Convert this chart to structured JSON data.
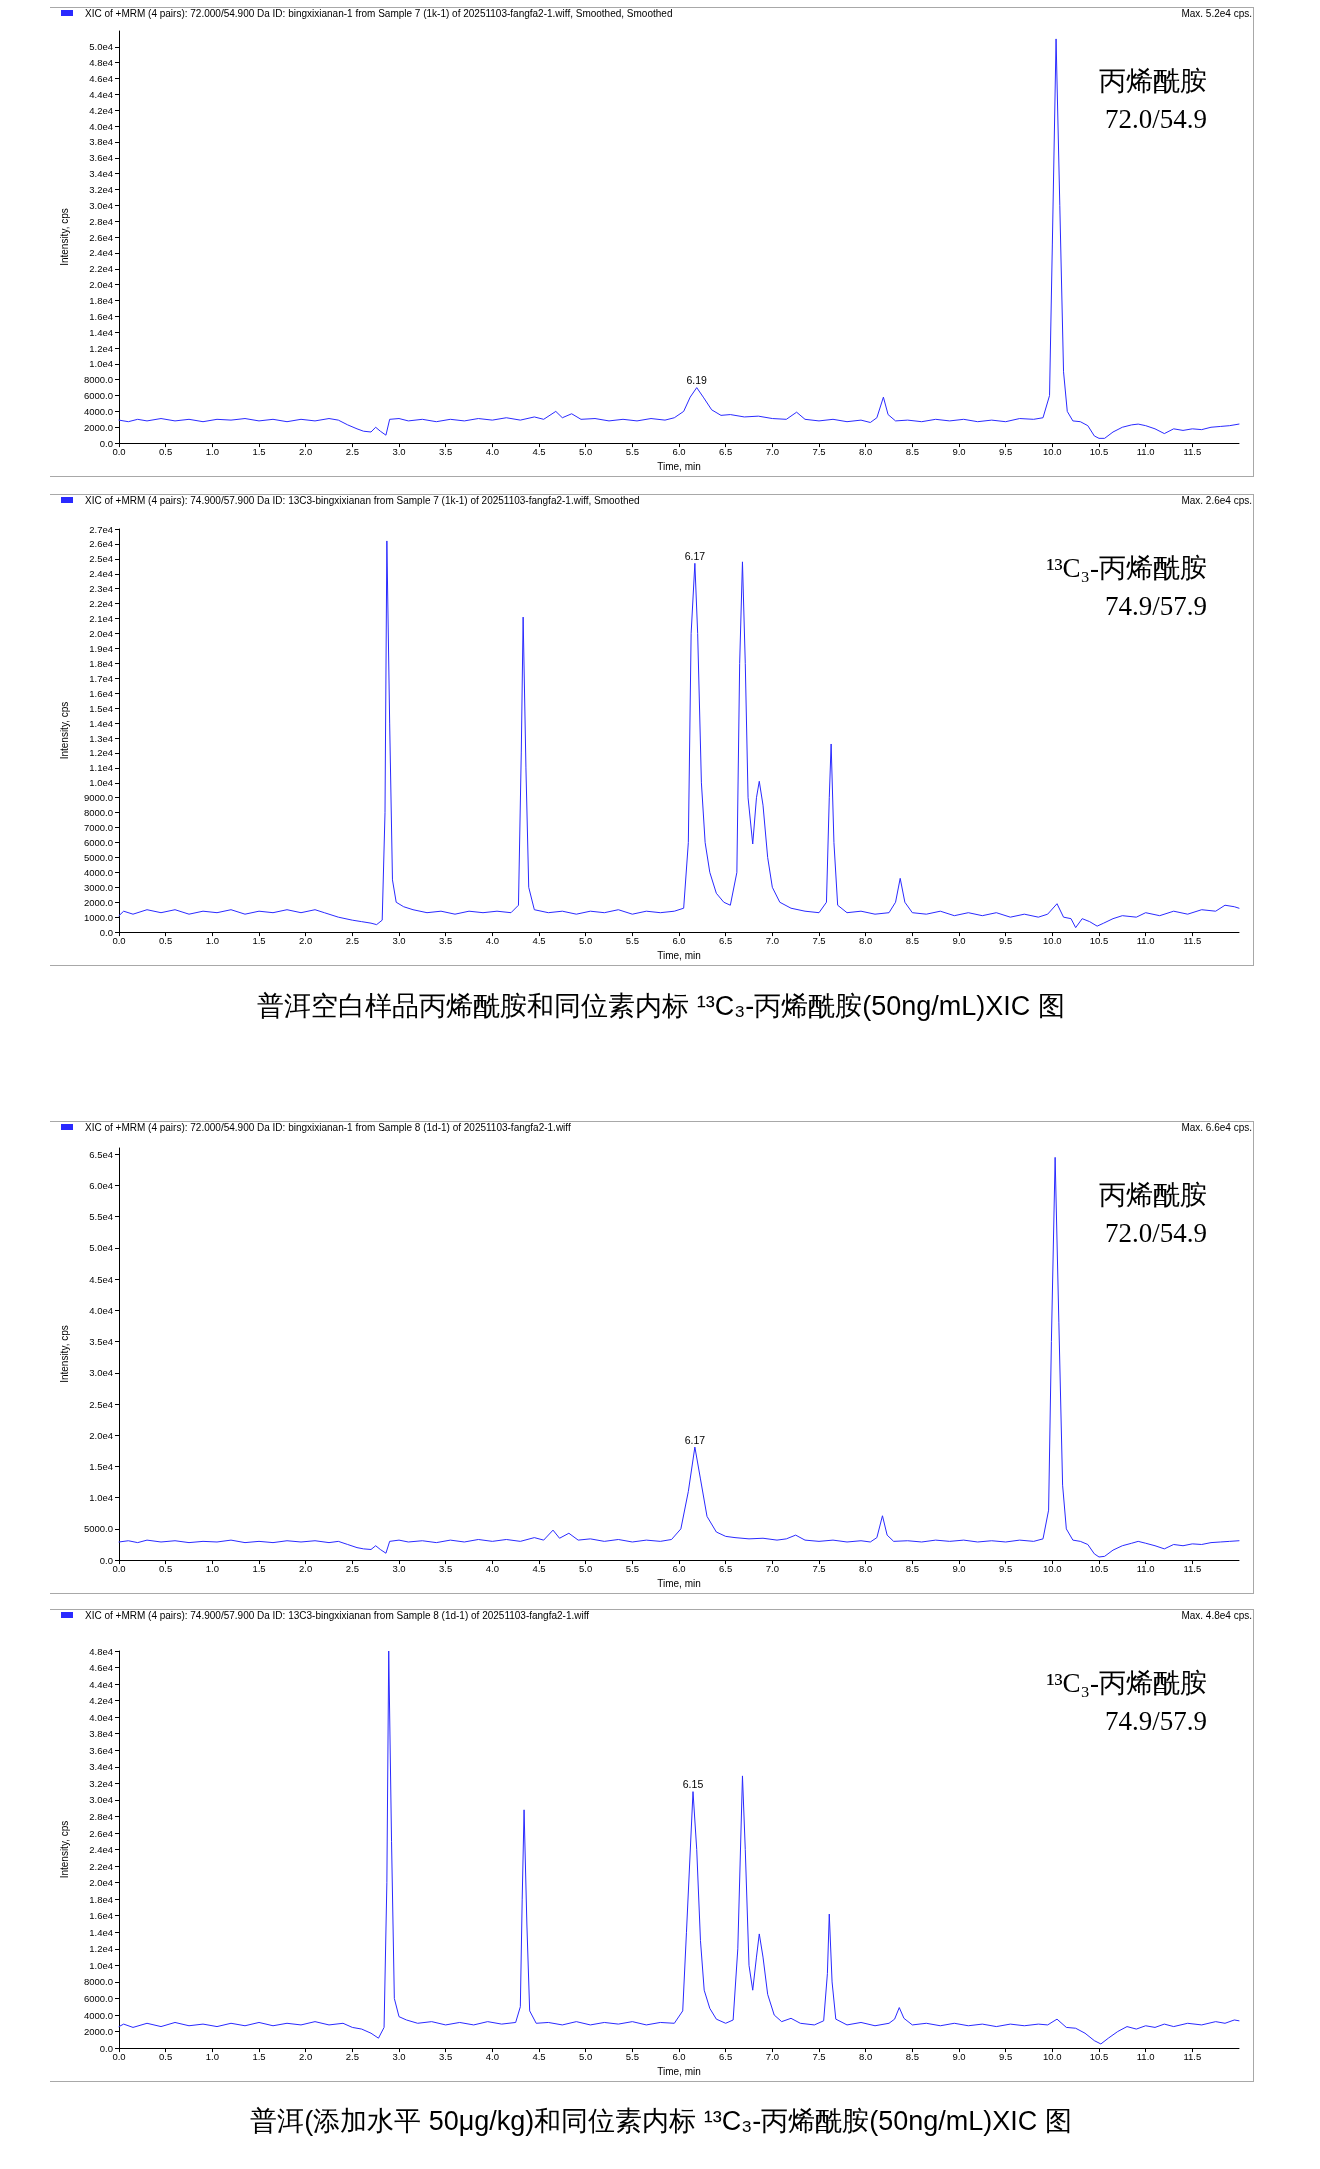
{
  "chart_data": [
    {
      "type": "line",
      "legend": "top left",
      "grid": false,
      "marker": "none",
      "xlabel": "Time, min",
      "ylabel": "Intensity, cps",
      "xlim": [
        0,
        12
      ],
      "ylim": [
        0,
        52000
      ],
      "xticks": [
        {
          "value": 0,
          "label": "0.0"
        },
        0.5,
        {
          "value": 1,
          "label": "1.0"
        },
        1.5,
        {
          "value": 2,
          "label": "2.0"
        },
        2.5,
        {
          "value": 3,
          "label": "3.0"
        },
        3.5,
        {
          "value": 4,
          "label": "4.0"
        },
        4.5,
        {
          "value": 5,
          "label": "5.0"
        },
        5.5,
        {
          "value": 6,
          "label": "6.0"
        },
        6.5,
        {
          "value": 7,
          "label": "7.0"
        },
        7.5,
        {
          "value": 8,
          "label": "8.0"
        },
        8.5,
        {
          "value": 9,
          "label": "9.0"
        },
        9.5,
        {
          "value": 10,
          "label": "10.0"
        },
        10.5,
        {
          "value": 11,
          "label": "11.0"
        },
        11.5
      ],
      "yticks": [
        {
          "value": 0,
          "label": "0.0"
        },
        {
          "value": 2000,
          "label": "2000.0"
        },
        {
          "value": 4000,
          "label": "4000.0"
        },
        {
          "value": 6000,
          "label": "6000.0"
        },
        {
          "value": 8000,
          "label": "8000.0"
        },
        {
          "value": 10000,
          "label": "1.0e4"
        },
        {
          "value": 12000,
          "label": "1.2e4"
        },
        {
          "value": 14000,
          "label": "1.4e4"
        },
        {
          "value": 16000,
          "label": "1.6e4"
        },
        {
          "value": 18000,
          "label": "1.8e4"
        },
        {
          "value": 20000,
          "label": "2.0e4"
        },
        {
          "value": 22000,
          "label": "2.2e4"
        },
        {
          "value": 24000,
          "label": "2.4e4"
        },
        {
          "value": 26000,
          "label": "2.6e4"
        },
        {
          "value": 28000,
          "label": "2.8e4"
        },
        {
          "value": 30000,
          "label": "3.0e4"
        },
        {
          "value": 32000,
          "label": "3.2e4"
        },
        {
          "value": 34000,
          "label": "3.4e4"
        },
        {
          "value": 36000,
          "label": "3.6e4"
        },
        {
          "value": 38000,
          "label": "3.8e4"
        },
        {
          "value": 40000,
          "label": "4.0e4"
        },
        {
          "value": 42000,
          "label": "4.2e4"
        },
        {
          "value": 44000,
          "label": "4.4e4"
        },
        {
          "value": 46000,
          "label": "4.6e4"
        },
        {
          "value": 48000,
          "label": "4.8e4"
        },
        {
          "value": 50000,
          "label": "5.0e4"
        }
      ],
      "x": [
        0,
        0.1,
        0.2,
        0.3,
        0.45,
        0.6,
        0.75,
        0.9,
        1.05,
        1.2,
        1.35,
        1.5,
        1.65,
        1.8,
        1.95,
        2.1,
        2.25,
        2.35,
        2.45,
        2.55,
        2.62,
        2.7,
        2.75,
        2.8,
        2.86,
        2.9,
        3.0,
        3.1,
        3.25,
        3.4,
        3.55,
        3.7,
        3.85,
        4.0,
        4.15,
        4.3,
        4.45,
        4.55,
        4.68,
        4.75,
        4.85,
        4.95,
        5.1,
        5.25,
        5.4,
        5.55,
        5.7,
        5.85,
        5.95,
        6.05,
        6.12,
        6.19,
        6.26,
        6.35,
        6.45,
        6.55,
        6.7,
        6.85,
        7.0,
        7.15,
        7.26,
        7.35,
        7.5,
        7.65,
        7.8,
        7.95,
        8.05,
        8.12,
        8.19,
        8.24,
        8.32,
        8.45,
        8.6,
        8.75,
        8.9,
        9.05,
        9.2,
        9.35,
        9.5,
        9.65,
        9.8,
        9.9,
        9.97,
        10.0,
        10.04,
        10.08,
        10.12,
        10.16,
        10.22,
        10.3,
        10.38,
        10.45,
        10.5,
        10.56,
        10.65,
        10.75,
        10.85,
        10.92,
        11.0,
        11.1,
        11.2,
        11.3,
        11.4,
        11.5,
        11.6,
        11.7,
        11.8,
        11.9,
        12.0
      ],
      "series": [
        {
          "name": "XIC of +MRM (4 pairs): 72.000/54.900 Da ID: bingxixianan-1 from Sample 7 (1k-1) of 20251103-fangfa2-1.wiff, Smoothed, Smoothed",
          "color": "#2a2aff",
          "values": [
            2900,
            2700,
            3000,
            2800,
            3100,
            2800,
            3000,
            2700,
            3000,
            2900,
            3100,
            2800,
            3000,
            2700,
            3000,
            2800,
            3100,
            2900,
            2300,
            1800,
            1500,
            1400,
            2000,
            1500,
            1000,
            3000,
            3100,
            2800,
            3000,
            2700,
            3000,
            2800,
            3100,
            2900,
            3200,
            2900,
            3300,
            3000,
            4000,
            3200,
            3700,
            3000,
            3100,
            2800,
            3000,
            2800,
            3100,
            2900,
            3200,
            4000,
            5800,
            7000,
            5800,
            4200,
            3500,
            3600,
            3300,
            3400,
            3100,
            3000,
            3900,
            3000,
            2800,
            3000,
            2700,
            2900,
            2600,
            3200,
            5800,
            3600,
            2800,
            2900,
            2700,
            3000,
            2800,
            3000,
            2700,
            2900,
            2700,
            3100,
            3000,
            3200,
            6000,
            25000,
            51000,
            30000,
            9000,
            4000,
            2800,
            2700,
            2200,
            900,
            600,
            600,
            1400,
            2000,
            2300,
            2400,
            2200,
            1800,
            1200,
            1800,
            1600,
            1800,
            1700,
            2000,
            2100,
            2200,
            2400
          ]
        }
      ],
      "annotations": [
        {
          "text": "6.19",
          "x": 6.19,
          "y": 7000
        },
        "Max. 5.2e4 cps.",
        "丙烯酰胺",
        "72.0/54.9"
      ]
    },
    {
      "type": "line",
      "legend": "top left",
      "grid": false,
      "marker": "none",
      "xlabel": "Time, min",
      "ylabel": "Intensity, cps",
      "xlim": [
        0,
        12
      ],
      "ylim": [
        0,
        27000
      ],
      "xticks": [
        {
          "value": 0,
          "label": "0.0"
        },
        0.5,
        {
          "value": 1,
          "label": "1.0"
        },
        1.5,
        {
          "value": 2,
          "label": "2.0"
        },
        2.5,
        {
          "value": 3,
          "label": "3.0"
        },
        3.5,
        {
          "value": 4,
          "label": "4.0"
        },
        4.5,
        {
          "value": 5,
          "label": "5.0"
        },
        5.5,
        {
          "value": 6,
          "label": "6.0"
        },
        6.5,
        {
          "value": 7,
          "label": "7.0"
        },
        7.5,
        {
          "value": 8,
          "label": "8.0"
        },
        8.5,
        {
          "value": 9,
          "label": "9.0"
        },
        9.5,
        {
          "value": 10,
          "label": "10.0"
        },
        10.5,
        {
          "value": 11,
          "label": "11.0"
        },
        11.5
      ],
      "yticks": [
        {
          "value": 0,
          "label": "0.0"
        },
        {
          "value": 1000,
          "label": "1000.0"
        },
        {
          "value": 2000,
          "label": "2000.0"
        },
        {
          "value": 3000,
          "label": "3000.0"
        },
        {
          "value": 4000,
          "label": "4000.0"
        },
        {
          "value": 5000,
          "label": "5000.0"
        },
        {
          "value": 6000,
          "label": "6000.0"
        },
        {
          "value": 7000,
          "label": "7000.0"
        },
        {
          "value": 8000,
          "label": "8000.0"
        },
        {
          "value": 9000,
          "label": "9000.0"
        },
        {
          "value": 10000,
          "label": "1.0e4"
        },
        {
          "value": 11000,
          "label": "1.1e4"
        },
        {
          "value": 12000,
          "label": "1.2e4"
        },
        {
          "value": 13000,
          "label": "1.3e4"
        },
        {
          "value": 14000,
          "label": "1.4e4"
        },
        {
          "value": 15000,
          "label": "1.5e4"
        },
        {
          "value": 16000,
          "label": "1.6e4"
        },
        {
          "value": 17000,
          "label": "1.7e4"
        },
        {
          "value": 18000,
          "label": "1.8e4"
        },
        {
          "value": 19000,
          "label": "1.9e4"
        },
        {
          "value": 20000,
          "label": "2.0e4"
        },
        {
          "value": 21000,
          "label": "2.1e4"
        },
        {
          "value": 22000,
          "label": "2.2e4"
        },
        {
          "value": 23000,
          "label": "2.3e4"
        },
        {
          "value": 24000,
          "label": "2.4e4"
        },
        {
          "value": 25000,
          "label": "2.5e4"
        },
        {
          "value": 26000,
          "label": "2.6e4"
        },
        {
          "value": 27000,
          "label": "2.7e4"
        }
      ],
      "x": [
        0,
        0.05,
        0.15,
        0.3,
        0.45,
        0.6,
        0.75,
        0.9,
        1.05,
        1.2,
        1.35,
        1.5,
        1.65,
        1.8,
        1.95,
        2.1,
        2.2,
        2.35,
        2.5,
        2.6,
        2.7,
        2.76,
        2.82,
        2.85,
        2.87,
        2.9,
        2.93,
        2.97,
        3.05,
        3.15,
        3.3,
        3.45,
        3.6,
        3.75,
        3.9,
        4.05,
        4.2,
        4.28,
        4.31,
        4.33,
        4.36,
        4.39,
        4.45,
        4.6,
        4.75,
        4.9,
        5.05,
        5.2,
        5.35,
        5.5,
        5.65,
        5.8,
        5.95,
        6.05,
        6.1,
        6.13,
        6.17,
        6.2,
        6.24,
        6.28,
        6.33,
        6.4,
        6.48,
        6.55,
        6.62,
        6.65,
        6.68,
        6.71,
        6.74,
        6.79,
        6.83,
        6.86,
        6.9,
        6.95,
        7.0,
        7.08,
        7.2,
        7.35,
        7.5,
        7.58,
        7.61,
        7.63,
        7.66,
        7.7,
        7.8,
        7.95,
        8.1,
        8.25,
        8.32,
        8.37,
        8.42,
        8.5,
        8.65,
        8.8,
        8.95,
        9.1,
        9.25,
        9.4,
        9.55,
        9.7,
        9.85,
        9.95,
        10.05,
        10.12,
        10.2,
        10.25,
        10.32,
        10.4,
        10.48,
        10.55,
        10.65,
        10.75,
        10.9,
        11.0,
        11.15,
        11.3,
        11.45,
        11.6,
        11.75,
        11.85,
        11.95,
        12.0
      ],
      "series": [
        {
          "name": "XIC of +MRM (4 pairs): 74.900/57.900 Da ID: 13C3-bingxixianan from Sample 7 (1k-1) of 20251103-fangfa2-1.wiff, Smoothed",
          "color": "#2a2aff",
          "values": [
            1100,
            1400,
            1200,
            1500,
            1300,
            1500,
            1200,
            1400,
            1300,
            1500,
            1200,
            1400,
            1300,
            1500,
            1300,
            1500,
            1300,
            1000,
            800,
            700,
            600,
            500,
            800,
            8000,
            26200,
            14000,
            3500,
            2000,
            1700,
            1500,
            1300,
            1400,
            1200,
            1400,
            1300,
            1400,
            1300,
            1800,
            12000,
            21100,
            11000,
            3000,
            1500,
            1300,
            1400,
            1200,
            1400,
            1300,
            1500,
            1200,
            1400,
            1300,
            1400,
            1600,
            6000,
            20000,
            24700,
            20000,
            10000,
            6000,
            4000,
            2600,
            2000,
            1800,
            4000,
            18000,
            24800,
            18000,
            9000,
            5900,
            9000,
            10100,
            8500,
            5000,
            3000,
            2000,
            1600,
            1400,
            1300,
            2000,
            9000,
            12600,
            6000,
            1800,
            1300,
            1400,
            1200,
            1300,
            2000,
            3600,
            2000,
            1300,
            1200,
            1400,
            1100,
            1300,
            1100,
            1300,
            1000,
            1200,
            1000,
            1200,
            1900,
            1000,
            900,
            300,
            900,
            700,
            400,
            600,
            900,
            1100,
            1000,
            1300,
            1100,
            1400,
            1200,
            1500,
            1400,
            1800,
            1700,
            1600
          ]
        }
      ],
      "annotations": [
        {
          "text": "6.17",
          "x": 6.17,
          "y": 24700
        },
        "Max. 2.6e4 cps.",
        "¹³C₃-丙烯酰胺",
        "74.9/57.9",
        "普洱空白样品丙烯酰胺和同位素内标 ¹³C₃-丙烯酰胺(50ng/mL)XIC 图"
      ]
    },
    {
      "type": "line",
      "legend": "top left",
      "grid": false,
      "marker": "none",
      "xlabel": "Time, min",
      "ylabel": "Intensity, cps",
      "xlim": [
        0,
        12
      ],
      "ylim": [
        0,
        66000
      ],
      "xticks": [
        {
          "value": 0,
          "label": "0.0"
        },
        0.5,
        {
          "value": 1,
          "label": "1.0"
        },
        1.5,
        {
          "value": 2,
          "label": "2.0"
        },
        2.5,
        {
          "value": 3,
          "label": "3.0"
        },
        3.5,
        {
          "value": 4,
          "label": "4.0"
        },
        4.5,
        {
          "value": 5,
          "label": "5.0"
        },
        5.5,
        {
          "value": 6,
          "label": "6.0"
        },
        6.5,
        {
          "value": 7,
          "label": "7.0"
        },
        7.5,
        {
          "value": 8,
          "label": "8.0"
        },
        8.5,
        {
          "value": 9,
          "label": "9.0"
        },
        9.5,
        {
          "value": 10,
          "label": "10.0"
        },
        10.5,
        {
          "value": 11,
          "label": "11.0"
        },
        11.5
      ],
      "yticks": [
        {
          "value": 0,
          "label": "0.0"
        },
        {
          "value": 5000,
          "label": "5000.0"
        },
        {
          "value": 10000,
          "label": "1.0e4"
        },
        {
          "value": 15000,
          "label": "1.5e4"
        },
        {
          "value": 20000,
          "label": "2.0e4"
        },
        {
          "value": 25000,
          "label": "2.5e4"
        },
        {
          "value": 30000,
          "label": "3.0e4"
        },
        {
          "value": 35000,
          "label": "3.5e4"
        },
        {
          "value": 40000,
          "label": "4.0e4"
        },
        {
          "value": 45000,
          "label": "4.5e4"
        },
        {
          "value": 50000,
          "label": "5.0e4"
        },
        {
          "value": 55000,
          "label": "5.5e4"
        },
        {
          "value": 60000,
          "label": "6.0e4"
        },
        {
          "value": 65000,
          "label": "6.5e4"
        }
      ],
      "x": [
        0,
        0.1,
        0.2,
        0.3,
        0.45,
        0.6,
        0.75,
        0.9,
        1.05,
        1.2,
        1.35,
        1.5,
        1.65,
        1.8,
        1.95,
        2.1,
        2.25,
        2.35,
        2.45,
        2.55,
        2.62,
        2.7,
        2.75,
        2.8,
        2.86,
        2.9,
        3.0,
        3.1,
        3.25,
        3.4,
        3.55,
        3.7,
        3.85,
        4.0,
        4.15,
        4.3,
        4.45,
        4.55,
        4.65,
        4.72,
        4.82,
        4.92,
        5.05,
        5.2,
        5.35,
        5.5,
        5.65,
        5.8,
        5.92,
        6.02,
        6.1,
        6.17,
        6.23,
        6.3,
        6.4,
        6.5,
        6.6,
        6.75,
        6.9,
        7.05,
        7.15,
        7.25,
        7.35,
        7.5,
        7.65,
        7.8,
        7.95,
        8.05,
        8.12,
        8.18,
        8.23,
        8.3,
        8.45,
        8.6,
        8.75,
        8.9,
        9.05,
        9.2,
        9.35,
        9.5,
        9.65,
        9.8,
        9.9,
        9.96,
        9.99,
        10.03,
        10.07,
        10.11,
        10.15,
        10.22,
        10.3,
        10.38,
        10.45,
        10.5,
        10.56,
        10.65,
        10.75,
        10.85,
        10.92,
        11.0,
        11.1,
        11.2,
        11.3,
        11.4,
        11.5,
        11.6,
        11.7,
        11.8,
        11.9,
        12.0
      ],
      "series": [
        {
          "name": "XIC of +MRM (4 pairs): 72.000/54.900 Da ID: bingxixianan-1 from Sample 8 (1d-1) of 20251103-fangfa2-1.wiff",
          "color": "#2a2aff",
          "values": [
            2900,
            3100,
            2800,
            3200,
            2900,
            3100,
            2800,
            3000,
            2900,
            3200,
            2800,
            3000,
            2800,
            3100,
            2900,
            3100,
            2800,
            3000,
            2500,
            2000,
            1800,
            1700,
            2300,
            1700,
            1100,
            3000,
            3200,
            2900,
            3100,
            2800,
            3200,
            2900,
            3300,
            3000,
            3300,
            3000,
            3600,
            3200,
            4800,
            3500,
            4300,
            3200,
            3400,
            3000,
            3300,
            2900,
            3200,
            3000,
            3300,
            5000,
            11000,
            18100,
            13000,
            7000,
            4500,
            3800,
            3600,
            3400,
            3500,
            3200,
            3400,
            4000,
            3200,
            3000,
            3200,
            2900,
            3100,
            2900,
            3600,
            7100,
            4000,
            3000,
            3100,
            2900,
            3200,
            3000,
            3200,
            2900,
            3100,
            2900,
            3200,
            3000,
            3400,
            8000,
            35000,
            64500,
            38000,
            12000,
            5000,
            3200,
            3000,
            2500,
            1000,
            500,
            600,
            1600,
            2300,
            2700,
            3000,
            2700,
            2300,
            1800,
            2500,
            2300,
            2600,
            2500,
            2800,
            2900,
            3000,
            3100
          ]
        }
      ],
      "annotations": [
        {
          "text": "6.17",
          "x": 6.17,
          "y": 18100
        },
        "Max. 6.6e4 cps.",
        "丙烯酰胺",
        "72.0/54.9"
      ]
    },
    {
      "type": "line",
      "legend": "top left",
      "grid": false,
      "marker": "none",
      "xlabel": "Time, min",
      "ylabel": "Intensity, cps",
      "xlim": [
        0,
        12
      ],
      "ylim": [
        0,
        48000
      ],
      "xticks": [
        {
          "value": 0,
          "label": "0.0"
        },
        0.5,
        {
          "value": 1,
          "label": "1.0"
        },
        1.5,
        {
          "value": 2,
          "label": "2.0"
        },
        2.5,
        {
          "value": 3,
          "label": "3.0"
        },
        3.5,
        {
          "value": 4,
          "label": "4.0"
        },
        4.5,
        {
          "value": 5,
          "label": "5.0"
        },
        5.5,
        {
          "value": 6,
          "label": "6.0"
        },
        6.5,
        {
          "value": 7,
          "label": "7.0"
        },
        7.5,
        {
          "value": 8,
          "label": "8.0"
        },
        8.5,
        {
          "value": 9,
          "label": "9.0"
        },
        9.5,
        {
          "value": 10,
          "label": "10.0"
        },
        10.5,
        {
          "value": 11,
          "label": "11.0"
        },
        11.5
      ],
      "yticks": [
        {
          "value": 0,
          "label": "0.0"
        },
        {
          "value": 2000,
          "label": "2000.0"
        },
        {
          "value": 4000,
          "label": "4000.0"
        },
        {
          "value": 6000,
          "label": "6000.0"
        },
        {
          "value": 8000,
          "label": "8000.0"
        },
        {
          "value": 10000,
          "label": "1.0e4"
        },
        {
          "value": 12000,
          "label": "1.2e4"
        },
        {
          "value": 14000,
          "label": "1.4e4"
        },
        {
          "value": 16000,
          "label": "1.6e4"
        },
        {
          "value": 18000,
          "label": "1.8e4"
        },
        {
          "value": 20000,
          "label": "2.0e4"
        },
        {
          "value": 22000,
          "label": "2.2e4"
        },
        {
          "value": 24000,
          "label": "2.4e4"
        },
        {
          "value": 26000,
          "label": "2.6e4"
        },
        {
          "value": 28000,
          "label": "2.8e4"
        },
        {
          "value": 30000,
          "label": "3.0e4"
        },
        {
          "value": 32000,
          "label": "3.2e4"
        },
        {
          "value": 34000,
          "label": "3.4e4"
        },
        {
          "value": 36000,
          "label": "3.6e4"
        },
        {
          "value": 38000,
          "label": "3.8e4"
        },
        {
          "value": 40000,
          "label": "4.0e4"
        },
        {
          "value": 42000,
          "label": "4.2e4"
        },
        {
          "value": 44000,
          "label": "4.4e4"
        },
        {
          "value": 46000,
          "label": "4.6e4"
        },
        {
          "value": 48000,
          "label": "4.8e4"
        }
      ],
      "x": [
        0,
        0.05,
        0.15,
        0.3,
        0.45,
        0.6,
        0.75,
        0.9,
        1.05,
        1.2,
        1.35,
        1.5,
        1.65,
        1.8,
        1.95,
        2.1,
        2.25,
        2.4,
        2.5,
        2.6,
        2.7,
        2.78,
        2.84,
        2.87,
        2.89,
        2.92,
        2.95,
        3.0,
        3.08,
        3.2,
        3.35,
        3.5,
        3.65,
        3.8,
        3.95,
        4.1,
        4.25,
        4.3,
        4.32,
        4.34,
        4.37,
        4.4,
        4.47,
        4.6,
        4.75,
        4.9,
        5.05,
        5.2,
        5.35,
        5.5,
        5.65,
        5.8,
        5.95,
        6.04,
        6.08,
        6.15,
        6.19,
        6.23,
        6.27,
        6.33,
        6.4,
        6.5,
        6.58,
        6.63,
        6.68,
        6.71,
        6.75,
        6.79,
        6.83,
        6.86,
        6.9,
        6.95,
        7.02,
        7.1,
        7.2,
        7.3,
        7.45,
        7.55,
        7.59,
        7.61,
        7.64,
        7.68,
        7.8,
        7.95,
        8.1,
        8.25,
        8.31,
        8.36,
        8.41,
        8.5,
        8.65,
        8.8,
        8.95,
        9.1,
        9.25,
        9.4,
        9.55,
        9.7,
        9.85,
        9.95,
        10.05,
        10.15,
        10.25,
        10.35,
        10.45,
        10.52,
        10.6,
        10.7,
        10.8,
        10.9,
        11.0,
        11.1,
        11.2,
        11.3,
        11.45,
        11.6,
        11.75,
        11.85,
        11.95,
        12.0
      ],
      "series": [
        {
          "name": "XIC of +MRM (4 pairs): 74.900/57.900 Da ID: 13C3-bingxixianan from Sample 8 (1d-1) of 20251103-fangfa2-1.wiff",
          "color": "#2a2aff",
          "values": [
            2600,
            2900,
            2500,
            3000,
            2600,
            3100,
            2700,
            2900,
            2600,
            3000,
            2700,
            3100,
            2700,
            3000,
            2800,
            3200,
            2800,
            3000,
            2500,
            2300,
            1800,
            1200,
            2500,
            20000,
            48000,
            25000,
            6000,
            3800,
            3400,
            3000,
            3200,
            2800,
            3100,
            2800,
            3200,
            2900,
            3100,
            5000,
            18000,
            28800,
            15000,
            4500,
            3000,
            3100,
            2800,
            3200,
            2800,
            3100,
            2900,
            3200,
            2800,
            3100,
            3000,
            4500,
            14000,
            31000,
            24000,
            13000,
            7000,
            4800,
            3500,
            3000,
            3400,
            12000,
            32900,
            24000,
            10000,
            7000,
            11000,
            13800,
            11000,
            6500,
            4000,
            3200,
            3600,
            3000,
            2800,
            3300,
            9000,
            16200,
            8000,
            3500,
            2800,
            3100,
            2700,
            3000,
            3500,
            4900,
            3600,
            2800,
            3000,
            2700,
            3000,
            2700,
            2900,
            2600,
            2900,
            2700,
            2900,
            2800,
            3500,
            2500,
            2400,
            1800,
            900,
            500,
            1200,
            2000,
            2600,
            2300,
            2700,
            2500,
            2900,
            2600,
            3000,
            2800,
            3200,
            3000,
            3400,
            3300
          ]
        }
      ],
      "annotations": [
        {
          "text": "6.15",
          "x": 6.15,
          "y": 31000
        },
        "Max. 4.8e4 cps.",
        "¹³C₃-丙烯酰胺",
        "74.9/57.9",
        "普洱(添加水平 50μg/kg)和同位素内标 ¹³C₃-丙烯酰胺(50ng/mL)XIC 图"
      ]
    }
  ]
}
